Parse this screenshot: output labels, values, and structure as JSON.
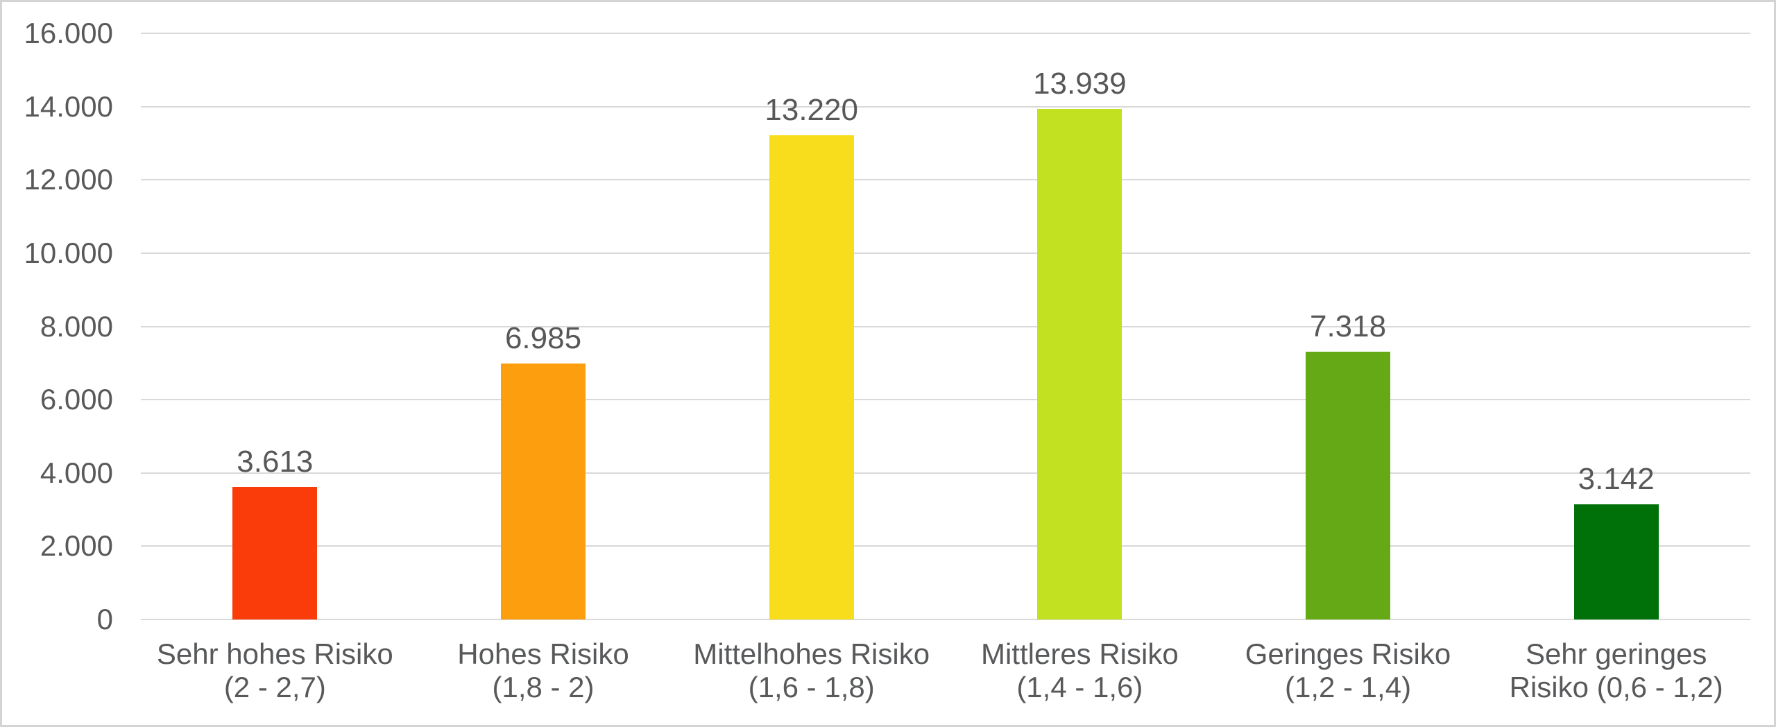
{
  "chart_data": {
    "type": "bar",
    "title": "",
    "xlabel": "",
    "ylabel": "",
    "categories": [
      "Sehr hohes Risiko (2 - 2,7)",
      "Hohes Risiko (1,8 - 2)",
      "Mittelhohes Risiko (1,6 - 1,8)",
      "Mittleres Risiko (1,4 - 1,6)",
      "Geringes Risiko (1,2 - 1,4)",
      "Sehr geringes Risiko (0,6 - 1,2)"
    ],
    "category_label_lines": [
      [
        "Sehr hohes Risiko",
        "(2 - 2,7)"
      ],
      [
        "Hohes Risiko",
        "(1,8 - 2)"
      ],
      [
        "Mittelhohes Risiko",
        "(1,6 - 1,8)"
      ],
      [
        "Mittleres Risiko",
        "(1,4 - 1,6)"
      ],
      [
        "Geringes Risiko",
        "(1,2 - 1,4)"
      ],
      [
        "Sehr geringes",
        "Risiko (0,6 - 1,2)"
      ]
    ],
    "values": [
      3613,
      6985,
      13220,
      13939,
      7318,
      3142
    ],
    "value_labels": [
      "3.613",
      "6.985",
      "13.220",
      "13.939",
      "7.318",
      "3.142"
    ],
    "bar_colors": [
      "#fa3b0a",
      "#fc9e0d",
      "#f7dd1b",
      "#c2e120",
      "#65aa16",
      "#007109"
    ],
    "ylim": [
      0,
      16000
    ],
    "ytick_step": 2000,
    "yticks": [
      0,
      2000,
      4000,
      6000,
      8000,
      10000,
      12000,
      14000,
      16000
    ],
    "ytick_labels": [
      "0",
      "2.000",
      "4.000",
      "6.000",
      "8.000",
      "10.000",
      "12.000",
      "14.000",
      "16.000"
    ],
    "grid": "horizontal",
    "legend": "none"
  },
  "style": {
    "text_color": "#58595b",
    "gridline_color": "#d9d9d9",
    "frame_border_color": "#d2d4d6",
    "background_color": "#ffffff"
  }
}
